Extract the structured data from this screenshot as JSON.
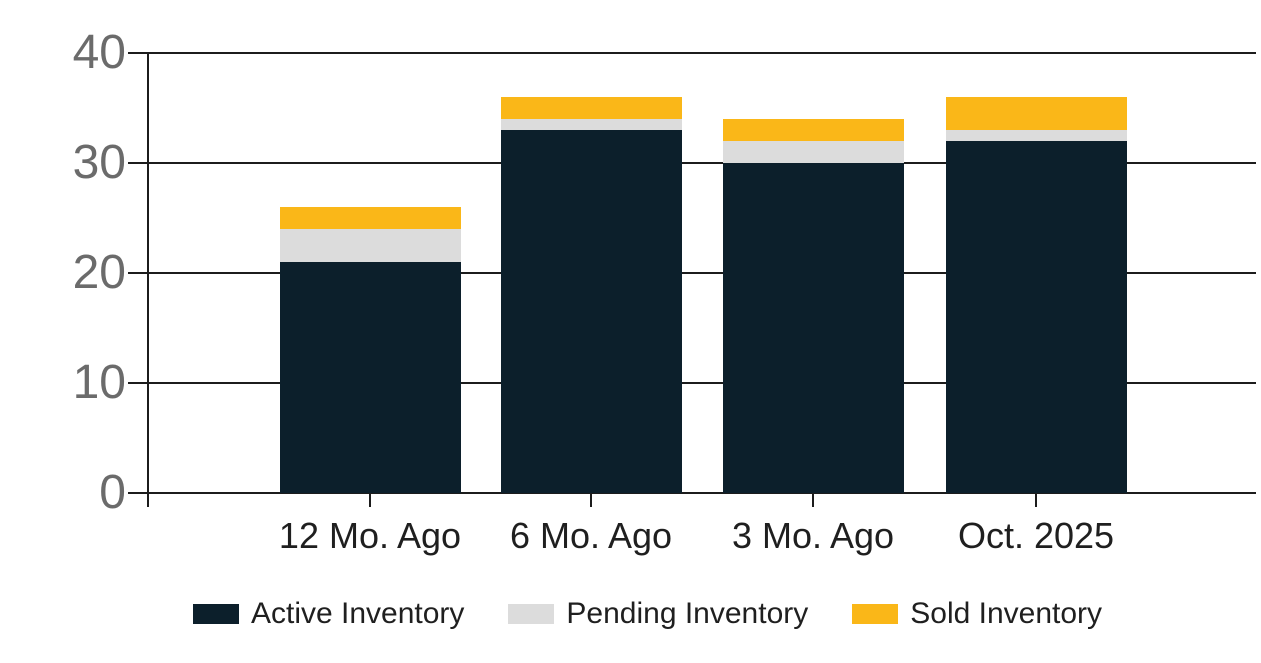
{
  "chart_data": {
    "type": "bar",
    "stacked": true,
    "title": "",
    "categories": [
      "12 Mo. Ago",
      "6 Mo. Ago",
      "3 Mo. Ago",
      "Oct. 2025"
    ],
    "series": [
      {
        "name": "Active Inventory",
        "color": "#0C1F2B",
        "values": [
          21,
          33,
          30,
          32
        ]
      },
      {
        "name": "Pending Inventory",
        "color": "#DCDCDC",
        "values": [
          3,
          1,
          2,
          1
        ]
      },
      {
        "name": "Sold Inventory",
        "color": "#FAB718",
        "values": [
          2,
          2,
          2,
          3
        ]
      }
    ],
    "xlabel": "",
    "ylabel": "",
    "ylim": [
      0,
      40
    ],
    "yticks": [
      0,
      10,
      20,
      30,
      40
    ],
    "grid": true,
    "legend_position": "bottom"
  },
  "style": {
    "background": "#FFFFFF",
    "axis_color": "#1C1C1C",
    "grid_color": "#1C1C1C",
    "y_label_color": "#6B6B6B",
    "x_label_color": "#1F1F1F",
    "legend_text_color": "#1F1F1F"
  }
}
